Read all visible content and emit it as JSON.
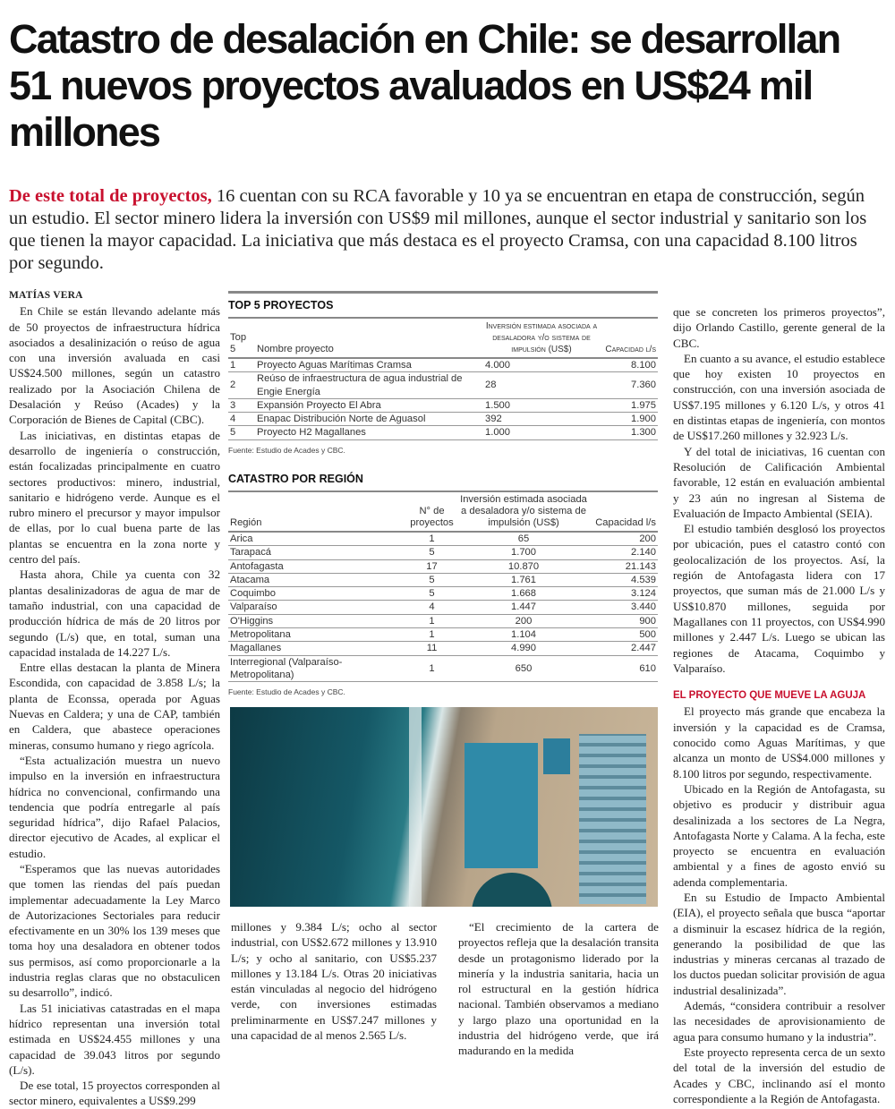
{
  "headline": "Catastro de desalación en Chile: se desarrollan 51 nuevos proyectos avaluados en US$24 mil millones",
  "lead": {
    "kicker": "De este total de proyectos,",
    "text": " 16 cuentan con su RCA favorable y 10 ya se encuentran en etapa de construcción, según un estudio. El sector minero lidera la inversión con US$9 mil millones, aunque el sector industrial y sanitario son los que tienen la mayor capacidad. La iniciativa que más destaca es el proyecto Cramsa, con una capacidad 8.100 litros por segundo."
  },
  "colors": {
    "accent": "#c8102e"
  },
  "byline": "MATÍAS VERA",
  "col1": [
    "En Chile se están llevando adelante más de 50 proyectos de infraestructura hídrica asociados a desalinización o reúso de agua con una inversión avaluada en casi US$24.500 millones, según un catastro realizado por la Asociación Chilena de Desalación y Reúso (Acades) y la Corporación de Bienes de Capital (CBC).",
    "Las iniciativas, en distintas etapas de desarrollo de ingeniería o construcción, están focalizadas principalmente en cuatro sectores productivos: minero, industrial, sanitario e hidrógeno verde. Aunque es el rubro minero el precursor y mayor impulsor de ellas, por lo cual buena parte de las plantas se encuentra en la zona norte y centro del país.",
    "Hasta ahora, Chile ya cuenta con 32 plantas desalinizadoras de agua de mar de tamaño industrial, con una capacidad de producción hídrica de más de 20 litros por segundo (L/s) que, en total, suman una capacidad instalada de 14.227 L/s.",
    "Entre ellas destacan la planta de Minera Escondida, con capacidad de 3.858 L/s; la planta de Econssa, operada por Aguas Nuevas en Caldera; y una de CAP, también en Caldera, que abastece operaciones mineras, consumo humano y riego agrícola.",
    "“Esta actualización muestra un nuevo impulso en la inversión en infraestructura hídrica no convencional, confirmando una tendencia que podría entregarle al país seguridad hídrica”, dijo Rafael Palacios, director ejecutivo de Acades, al explicar el estudio.",
    "“Esperamos que las nuevas autoridades que tomen las riendas del país puedan implementar adecuadamente la Ley Marco de Autorizaciones Sectoriales para reducir efectivamente en un 30% los 139 meses que toma hoy una desaladora en obtener todos sus permisos, así como proporcionarle a la industria reglas claras que no obstaculicen su desarrollo”, indicó.",
    "Las 51 iniciativas catastradas en el mapa hídrico representan una inversión total estimada en US$24.455 millones y una capacidad de 39.043 litros por segundo (L/s).",
    "De ese total, 15 proyectos corresponden al sector minero, equivalentes a US$9.299"
  ],
  "col2a": [
    "millones y 9.384 L/s; ocho al sector industrial, con US$2.672 millones y 13.910 L/s; y ocho al sanitario, con US$5.237 millones y 13.184 L/s. Otras 20 iniciativas están vinculadas al negocio del hidrógeno verde, con inversiones estimadas preliminarmente en US$7.247 millones y una capacidad de al menos 2.565 L/s."
  ],
  "col2b": [
    "“El crecimiento de la cartera de proyectos refleja que la desalación transita desde un protagonismo liderado por la minería y la industria sanitaria, hacia un rol estructural en la gestión hídrica nacional. También observamos a mediano y largo plazo una oportunidad en la industria del hidrógeno verde, que irá madurando en la medida"
  ],
  "col3": [
    "que se concreten los primeros proyectos”, dijo Orlando Castillo, gerente general de la CBC.",
    "En cuanto a su avance, el estudio establece que hoy existen 10 proyectos en construcción, con una inversión asociada de US$7.195 millones y 6.120 L/s, y otros 41 en distintas etapas de ingeniería, con montos de US$17.260 millones y 32.923 L/s.",
    "Y del total de iniciativas, 16 cuentan con Resolución de Calificación Ambiental favorable, 12 están en evaluación ambiental y 23 aún no ingresan al Sistema de Evaluación de Impacto Ambiental (SEIA).",
    "El estudio también desglosó los proyectos por ubicación, pues el catastro contó con geolocalización de los proyectos. Así, la región de Antofagasta lidera con 17 proyectos, que suman más de 21.000 L/s y US$10.870 millones, seguida por Magallanes con 11 proyectos, con US$4.990 millones y 2.447 L/s. Luego se ubican las regiones de Atacama, Coquimbo y Valparaíso."
  ],
  "subhead": "EL PROYECTO QUE MUEVE LA AGUJA",
  "col3b": [
    "El proyecto más grande que encabeza la inversión y la capacidad es de Cramsa, conocido como Aguas Marítimas, y que alcanza un monto de US$4.000 millones y 8.100 litros por segundo, respectivamente.",
    "Ubicado en la Región de Antofagasta, su objetivo es producir y distribuir agua desalinizada a los sectores de La Negra, Antofagasta Norte y Calama. A la fecha, este proyecto se encuentra en evaluación ambiental y a fines de agosto envió su adenda complementaria.",
    "En su Estudio de Impacto Ambiental (EIA), el proyecto señala que busca “aportar a disminuir la escasez hídrica de la región, generando la posibilidad de que las industrias y mineras cercanas al trazado de los ductos puedan solicitar provisión de agua industrial desalinizada”.",
    "Además, “considera contribuir a resolver las necesidades de aprovisionamiento de agua para consumo humano y la industria”.",
    "Este proyecto representa cerca de un sexto del total de la inversión del estudio de Acades y CBC, inclinando así el monto correspondiente a la Región de Antofagasta."
  ],
  "end_mark": "P",
  "top5": {
    "title": "TOP 5 PROYECTOS",
    "headers": [
      "Top 5",
      "Nombre proyecto",
      "Inversión estimada asociada a desaladora y/o sistema de impulsión (US$)",
      "Capacidad l/s"
    ],
    "rows": [
      [
        "1",
        "Proyecto Aguas Marítimas Cramsa",
        "4.000",
        "8.100"
      ],
      [
        "2",
        "Reúso de infraestructura de agua industrial de Engie Energía",
        "28",
        "7.360"
      ],
      [
        "3",
        "Expansión Proyecto El Abra",
        "1.500",
        "1.975"
      ],
      [
        "4",
        "Enapac Distribución Norte de Aguasol",
        "392",
        "1.900"
      ],
      [
        "5",
        "Proyecto H2 Magallanes",
        "1.000",
        "1.300"
      ]
    ],
    "source": "Fuente: Estudio de Acades y CBC."
  },
  "regions": {
    "title": "CATASTRO POR REGIÓN",
    "headers": [
      "Región",
      "N° de proyectos",
      "Inversión estimada asociada a desaladora y/o sistema de impulsión (US$)",
      "Capacidad l/s"
    ],
    "rows": [
      [
        "Arica",
        "1",
        "65",
        "200"
      ],
      [
        "Tarapacá",
        "5",
        "1.700",
        "2.140"
      ],
      [
        "Antofagasta",
        "17",
        "10.870",
        "21.143"
      ],
      [
        "Atacama",
        "5",
        "1.761",
        "4.539"
      ],
      [
        "Coquimbo",
        "5",
        "1.668",
        "3.124"
      ],
      [
        "Valparaíso",
        "4",
        "1.447",
        "3.440"
      ],
      [
        "O'Higgins",
        "1",
        "200",
        "900"
      ],
      [
        "Metropolitana",
        "1",
        "1.104",
        "500"
      ],
      [
        "Magallanes",
        "11",
        "4.990",
        "2.447"
      ],
      [
        "Interregional (Valparaíso- Metropolitana)",
        "1",
        "650",
        "610"
      ]
    ],
    "source": "Fuente: Estudio de Acades y CBC."
  }
}
